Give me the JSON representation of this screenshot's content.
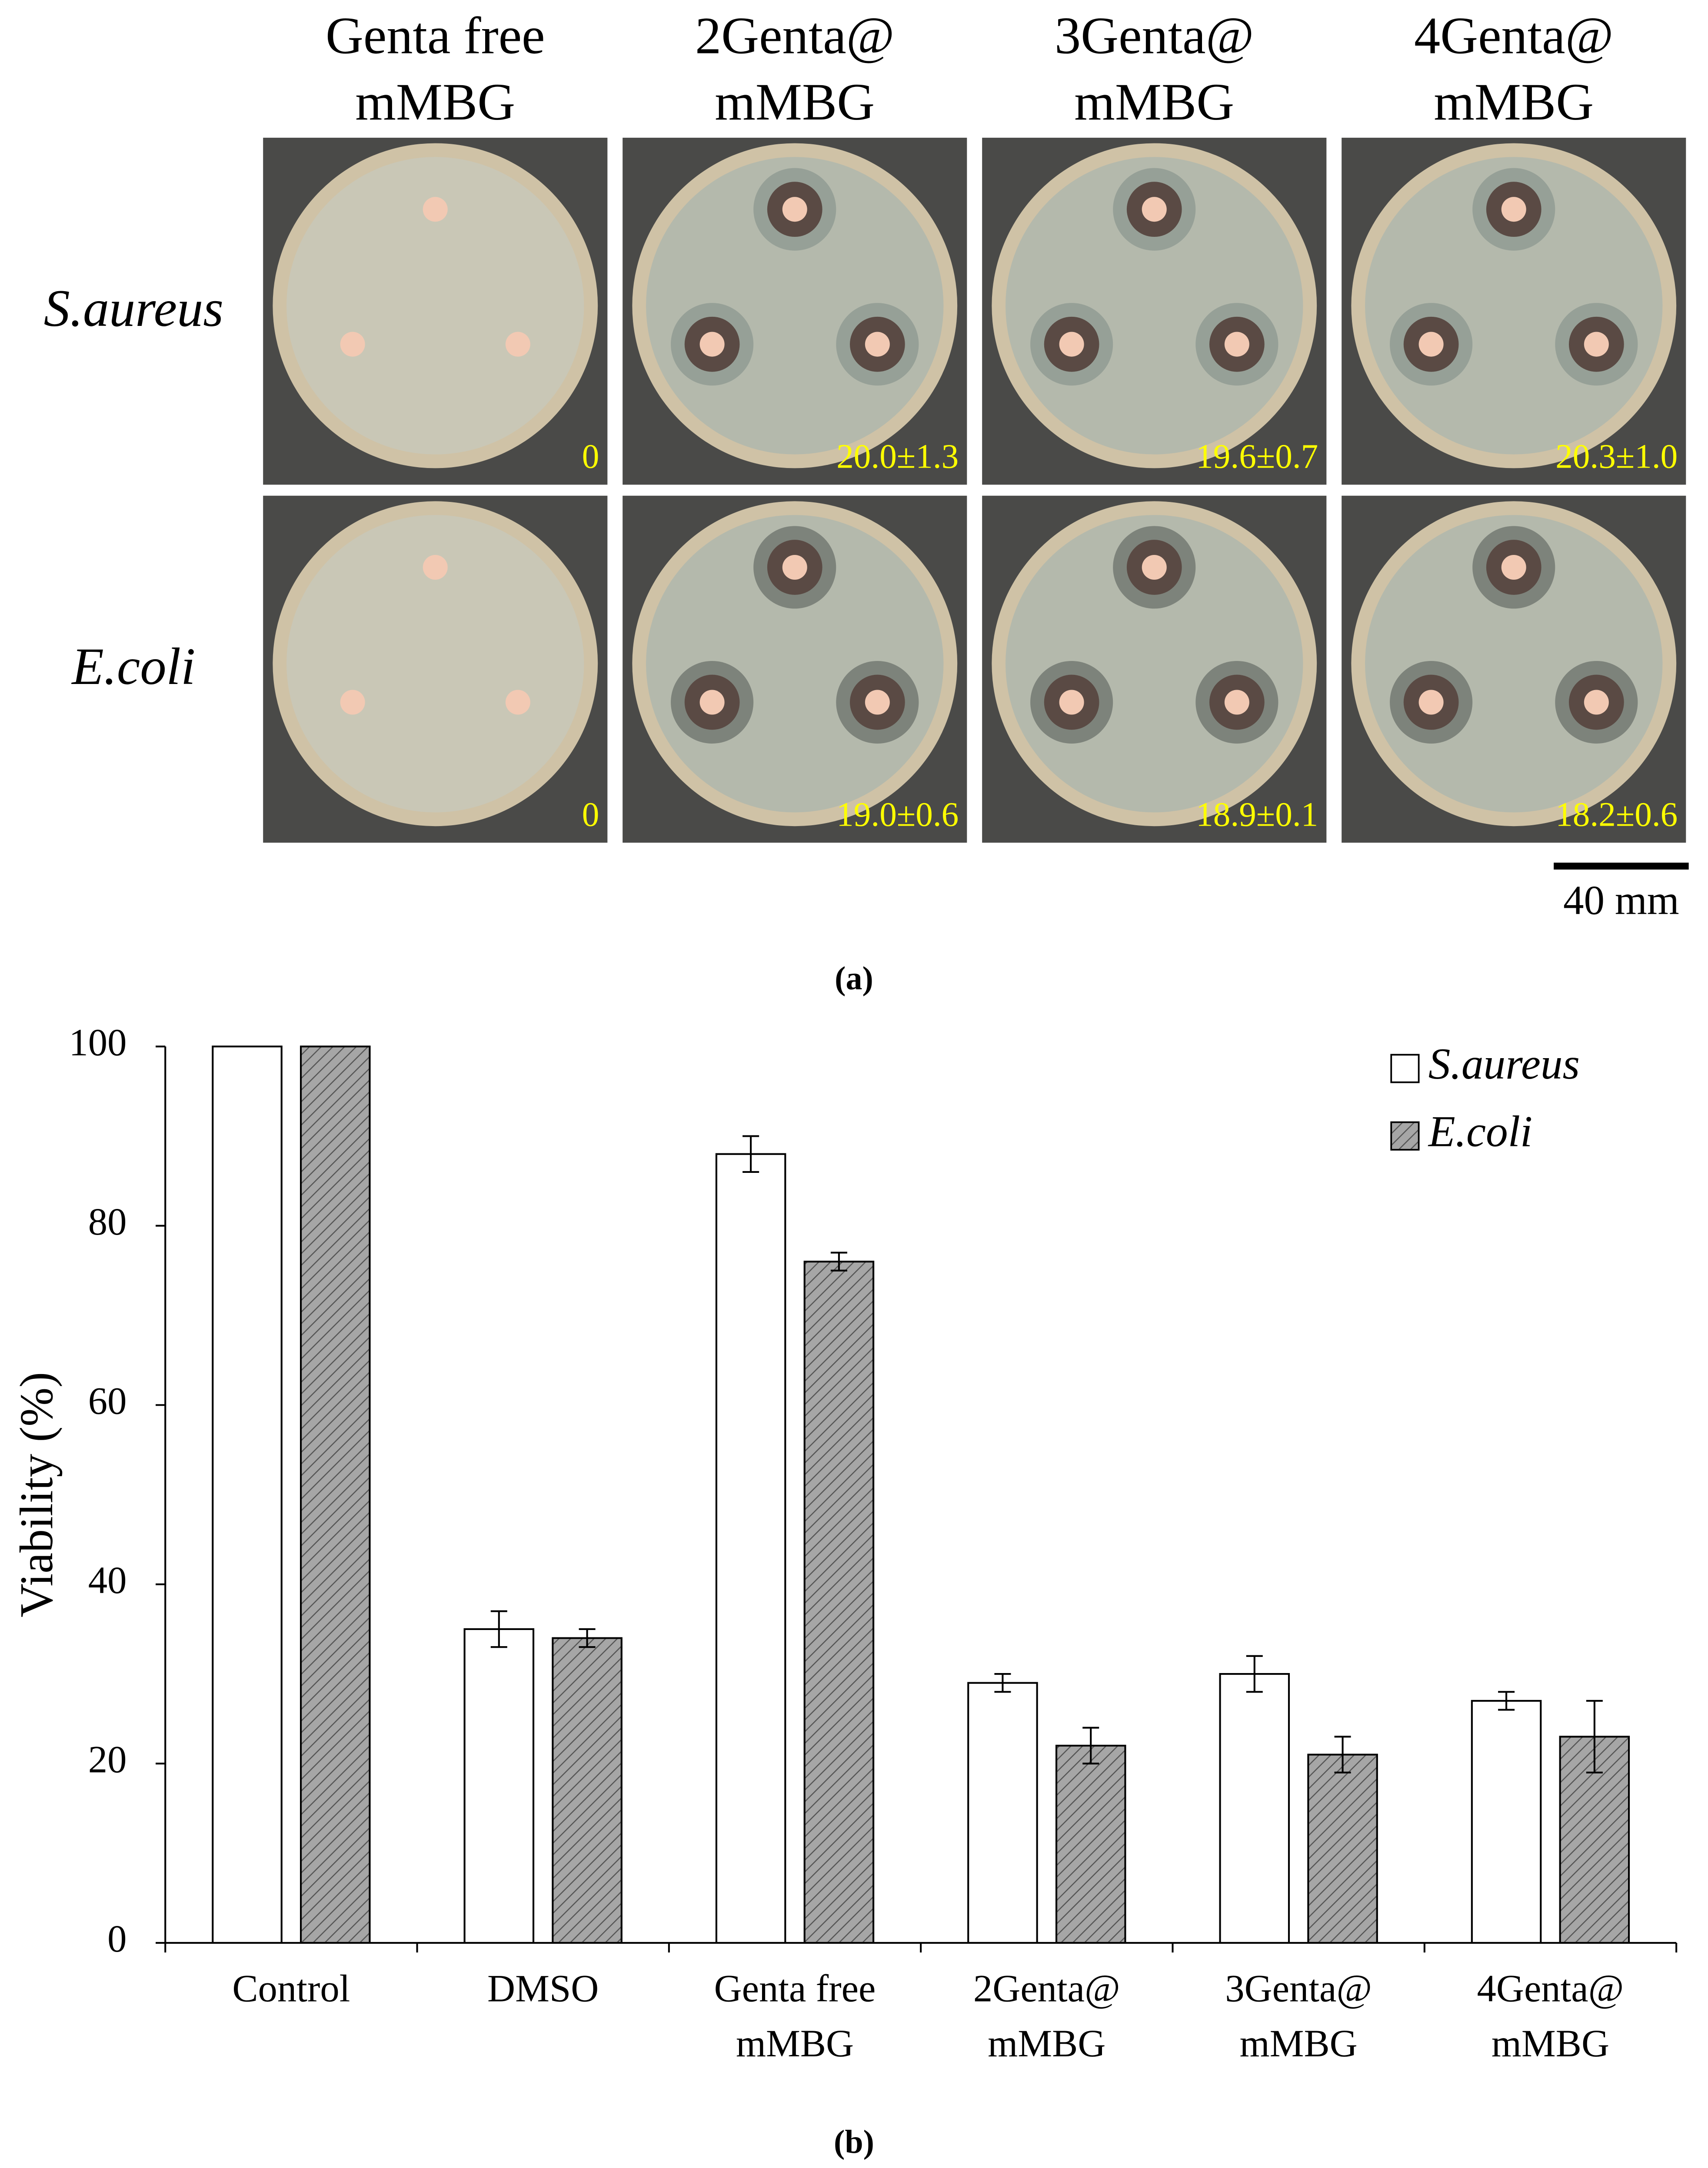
{
  "panel_a": {
    "columns": [
      [
        "Genta free",
        "mMBG"
      ],
      [
        "2Genta@",
        "mMBG"
      ],
      [
        "3Genta@",
        "mMBG"
      ],
      [
        "4Genta@",
        "mMBG"
      ]
    ],
    "rows": [
      {
        "label": "S.aureus",
        "zones": [
          "0",
          "20.0±1.3",
          "19.6±0.7",
          "20.3±1.0"
        ]
      },
      {
        "label": "E.coli",
        "zones": [
          "0",
          "19.0±0.6",
          "18.9±0.1",
          "18.2±0.6"
        ]
      }
    ],
    "scale_bar": "40 mm",
    "caption": "(a)"
  },
  "chart_data": {
    "type": "bar",
    "caption": "(b)",
    "y_label": "Viability (%)",
    "categories": [
      [
        "Control"
      ],
      [
        "DMSO"
      ],
      [
        "Genta free",
        "mMBG"
      ],
      [
        "2Genta@",
        "mMBG"
      ],
      [
        "3Genta@",
        "mMBG"
      ],
      [
        "4Genta@",
        "mMBG"
      ]
    ],
    "series": [
      {
        "name": "S.aureus",
        "color": "#ffffff",
        "values": [
          100,
          35,
          88,
          29,
          30,
          27
        ],
        "errors": [
          null,
          2,
          2,
          1,
          2,
          1
        ]
      },
      {
        "name": "E.coli",
        "color": "#a6a6a6",
        "values": [
          100,
          34,
          76,
          22,
          21,
          23
        ],
        "errors": [
          null,
          1,
          1,
          2,
          2,
          4
        ]
      }
    ],
    "ylim": [
      0,
      100
    ],
    "yticks": [
      0,
      20,
      40,
      60,
      80,
      100
    ],
    "legend": "top-right"
  }
}
